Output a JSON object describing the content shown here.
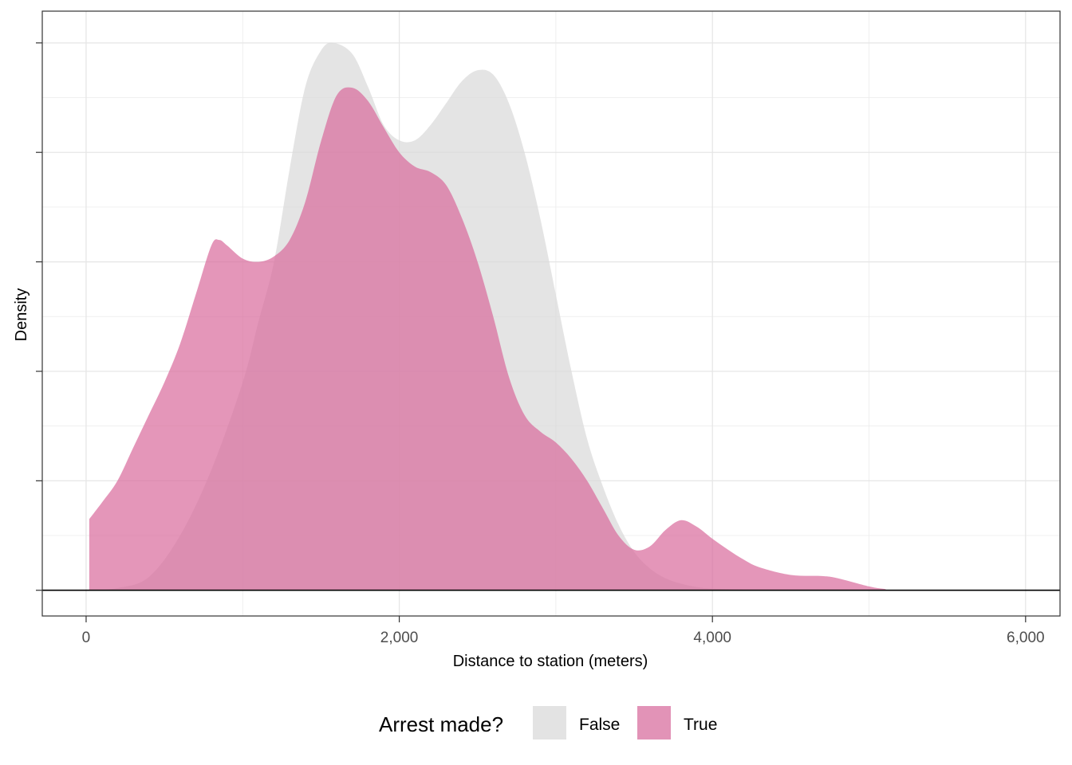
{
  "chart_data": {
    "type": "area",
    "title": "",
    "xlabel": "Distance to station (meters)",
    "ylabel": "Density",
    "xlim": [
      -280,
      6220
    ],
    "ylim": [
      -2.35e-05,
      0.000529
    ],
    "x_ticks": [
      0,
      2000,
      4000,
      6000
    ],
    "x_tick_labels": [
      "0",
      "2,000",
      "4,000",
      "6,000"
    ],
    "y_ticks": [
      0,
      0.0001,
      0.0002,
      0.0003,
      0.0004,
      0.0005
    ],
    "y_tick_labels_shown": false,
    "grid": true,
    "baseline_y": 0,
    "legend": {
      "title": "Arrest made?",
      "position": "bottom",
      "entries": [
        {
          "label": "False",
          "color": "#e3e3e3"
        },
        {
          "label": "True",
          "color": "#e293b7"
        }
      ]
    },
    "series": [
      {
        "name": "False",
        "color": "#d9d9d9",
        "opacity": 0.7,
        "x": [
          20,
          200,
          400,
          600,
          800,
          1000,
          1100,
          1200,
          1300,
          1400,
          1500,
          1580,
          1700,
          1800,
          1900,
          2000,
          2100,
          2200,
          2300,
          2400,
          2500,
          2600,
          2700,
          2800,
          2900,
          3000,
          3100,
          3200,
          3300,
          3400,
          3500,
          3600,
          3700,
          3800,
          3900,
          4000,
          4200,
          4500,
          5000,
          5200,
          6000
        ],
        "y": [
          0,
          2e-06,
          1.2e-05,
          5e-05,
          0.00011,
          0.00019,
          0.000245,
          0.0003,
          0.000385,
          0.00046,
          0.000493,
          0.0005,
          0.00049,
          0.00046,
          0.000425,
          0.000411,
          0.000411,
          0.000425,
          0.000445,
          0.000465,
          0.000475,
          0.000471,
          0.000445,
          0.0004,
          0.00034,
          0.00027,
          0.0002,
          0.000138,
          9.5e-05,
          6e-05,
          3.5e-05,
          2e-05,
          1.1e-05,
          6e-06,
          3e-06,
          1.5e-06,
          5e-07,
          2e-07,
          1e-07,
          0,
          0
        ]
      },
      {
        "name": "True",
        "color": "#d9699b",
        "opacity": 0.7,
        "x": [
          20,
          100,
          200,
          300,
          400,
          500,
          600,
          700,
          800,
          850,
          900,
          1000,
          1100,
          1200,
          1300,
          1400,
          1500,
          1600,
          1700,
          1800,
          1900,
          2000,
          2100,
          2200,
          2300,
          2400,
          2500,
          2600,
          2700,
          2800,
          2900,
          3000,
          3100,
          3200,
          3300,
          3400,
          3500,
          3600,
          3700,
          3800,
          3900,
          4000,
          4100,
          4200,
          4300,
          4500,
          4700,
          4800,
          5000,
          5100,
          5200,
          6000
        ],
        "y": [
          6.5e-05,
          8e-05,
          0.0001,
          0.00013,
          0.00016,
          0.00019,
          0.000225,
          0.00027,
          0.000315,
          0.00032,
          0.000315,
          0.000303,
          0.0003,
          0.000305,
          0.00032,
          0.000355,
          0.00041,
          0.000452,
          0.000459,
          0.000447,
          0.000423,
          0.0004,
          0.000387,
          0.000382,
          0.00037,
          0.00034,
          0.0003,
          0.00025,
          0.000195,
          0.00016,
          0.000145,
          0.000135,
          0.00012,
          0.0001,
          7.5e-05,
          5e-05,
          3.7e-05,
          4e-05,
          5.5e-05,
          6.4e-05,
          5.8e-05,
          4.7e-05,
          3.7e-05,
          2.8e-05,
          2.1e-05,
          1.4e-05,
          1.3e-05,
          1.1e-05,
          3.5e-06,
          1.2e-06,
          2e-07,
          0
        ]
      }
    ]
  }
}
